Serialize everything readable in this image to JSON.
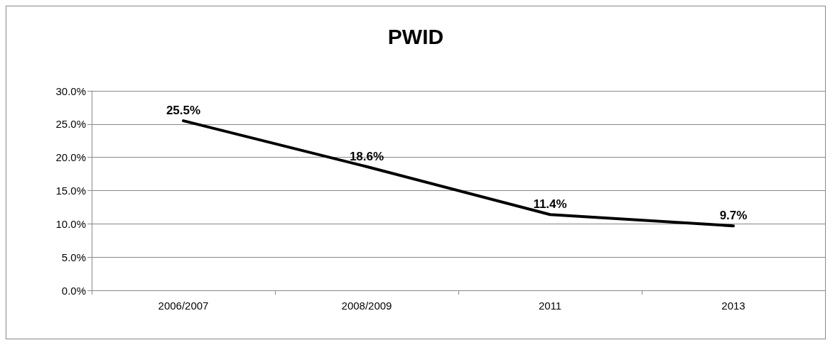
{
  "chart_data": {
    "type": "line",
    "title": "PWID",
    "categories": [
      "2006/2007",
      "2008/2009",
      "2011",
      "2013"
    ],
    "series": [
      {
        "color": "#000000",
        "values": [
          25.5,
          18.6,
          11.4,
          9.7
        ],
        "value_labels": [
          "25.5%",
          "18.6%",
          "11.4%",
          "9.7%"
        ]
      }
    ],
    "ylim": [
      0,
      30
    ],
    "yticks": [
      {
        "value": 0,
        "label": "0.0%"
      },
      {
        "value": 5,
        "label": "5.0%"
      },
      {
        "value": 10,
        "label": "10.0%"
      },
      {
        "value": 15,
        "label": "15.0%"
      },
      {
        "value": 20,
        "label": "20.0%"
      },
      {
        "value": 25,
        "label": "25.0%"
      },
      {
        "value": 30,
        "label": "30.0%"
      }
    ],
    "grid": "y",
    "marker": "none",
    "line_style": "solid"
  }
}
